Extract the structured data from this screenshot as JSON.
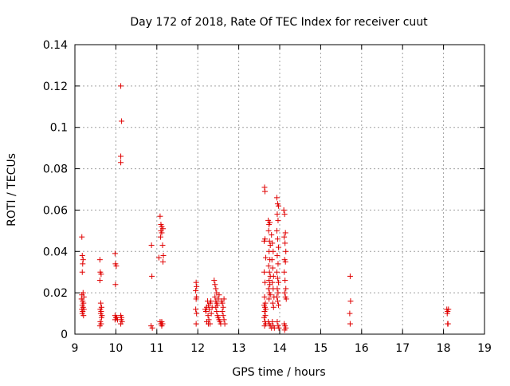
{
  "chart_data": {
    "type": "scatter",
    "title": "Day 172 of 2018, Rate Of TEC Index for receiver cuut",
    "xlabel": "GPS time / hours",
    "ylabel": "ROTI / TECUs",
    "xlim": [
      9,
      19
    ],
    "ylim": [
      0,
      0.14
    ],
    "x_ticks": [
      9,
      10,
      11,
      12,
      13,
      14,
      15,
      16,
      17,
      18,
      19
    ],
    "y_ticks": [
      0,
      0.02,
      0.04,
      0.06,
      0.08,
      0.1,
      0.12,
      0.14
    ],
    "x_tick_labels": [
      "9",
      "10",
      "11",
      "12",
      "13",
      "14",
      "15",
      "16",
      "17",
      "18",
      "19"
    ],
    "y_tick_labels": [
      "0",
      "0.02",
      "0.04",
      "0.06",
      "0.08",
      "0.1",
      "0.12",
      "0.14"
    ],
    "grid": true,
    "marker": "+",
    "marker_color": "#e00000",
    "series": [
      {
        "name": "ROTI",
        "points": [
          [
            9.17,
            0.047
          ],
          [
            9.18,
            0.038
          ],
          [
            9.2,
            0.036
          ],
          [
            9.19,
            0.034
          ],
          [
            9.18,
            0.03
          ],
          [
            9.2,
            0.02
          ],
          [
            9.17,
            0.019
          ],
          [
            9.22,
            0.018
          ],
          [
            9.16,
            0.017
          ],
          [
            9.19,
            0.016
          ],
          [
            9.21,
            0.015
          ],
          [
            9.18,
            0.014
          ],
          [
            9.2,
            0.013
          ],
          [
            9.17,
            0.012
          ],
          [
            9.22,
            0.012
          ],
          [
            9.19,
            0.011
          ],
          [
            9.18,
            0.01
          ],
          [
            9.21,
            0.009
          ],
          [
            9.61,
            0.036
          ],
          [
            9.62,
            0.03
          ],
          [
            9.64,
            0.029
          ],
          [
            9.61,
            0.026
          ],
          [
            9.63,
            0.015
          ],
          [
            9.65,
            0.013
          ],
          [
            9.62,
            0.012
          ],
          [
            9.64,
            0.011
          ],
          [
            9.63,
            0.01
          ],
          [
            9.66,
            0.009
          ],
          [
            9.65,
            0.008
          ],
          [
            9.62,
            0.006
          ],
          [
            9.61,
            0.004
          ],
          [
            9.64,
            0.005
          ],
          [
            9.98,
            0.039
          ],
          [
            9.99,
            0.034
          ],
          [
            10.01,
            0.033
          ],
          [
            9.99,
            0.024
          ],
          [
            9.98,
            0.009
          ],
          [
            10.0,
            0.008
          ],
          [
            10.02,
            0.008
          ],
          [
            10.04,
            0.007
          ],
          [
            9.98,
            0.007
          ],
          [
            10.12,
            0.12
          ],
          [
            10.14,
            0.103
          ],
          [
            10.12,
            0.086
          ],
          [
            10.12,
            0.083
          ],
          [
            10.12,
            0.009
          ],
          [
            10.14,
            0.008
          ],
          [
            10.13,
            0.007
          ],
          [
            10.15,
            0.006
          ],
          [
            10.12,
            0.005
          ],
          [
            10.87,
            0.043
          ],
          [
            10.88,
            0.028
          ],
          [
            10.86,
            0.004
          ],
          [
            10.89,
            0.003
          ],
          [
            11.08,
            0.057
          ],
          [
            11.1,
            0.053
          ],
          [
            11.12,
            0.052
          ],
          [
            11.15,
            0.051
          ],
          [
            11.1,
            0.05
          ],
          [
            11.12,
            0.049
          ],
          [
            11.09,
            0.047
          ],
          [
            11.14,
            0.043
          ],
          [
            11.16,
            0.038
          ],
          [
            11.05,
            0.037
          ],
          [
            11.15,
            0.035
          ],
          [
            11.08,
            0.006
          ],
          [
            11.12,
            0.006
          ],
          [
            11.1,
            0.005
          ],
          [
            11.14,
            0.005
          ],
          [
            11.12,
            0.004
          ],
          [
            11.96,
            0.025
          ],
          [
            11.97,
            0.023
          ],
          [
            11.95,
            0.021
          ],
          [
            11.97,
            0.018
          ],
          [
            11.96,
            0.017
          ],
          [
            11.95,
            0.012
          ],
          [
            11.97,
            0.01
          ],
          [
            11.96,
            0.005
          ],
          [
            12.18,
            0.012
          ],
          [
            12.2,
            0.011
          ],
          [
            12.22,
            0.013
          ],
          [
            12.24,
            0.016
          ],
          [
            12.26,
            0.014
          ],
          [
            12.28,
            0.012
          ],
          [
            12.3,
            0.015
          ],
          [
            12.32,
            0.016
          ],
          [
            12.25,
            0.009
          ],
          [
            12.27,
            0.007
          ],
          [
            12.22,
            0.006
          ],
          [
            12.3,
            0.005
          ],
          [
            12.26,
            0.005
          ],
          [
            12.33,
            0.01
          ],
          [
            12.35,
            0.013
          ],
          [
            12.4,
            0.026
          ],
          [
            12.42,
            0.024
          ],
          [
            12.44,
            0.022
          ],
          [
            12.46,
            0.02
          ],
          [
            12.42,
            0.018
          ],
          [
            12.44,
            0.016
          ],
          [
            12.46,
            0.015
          ],
          [
            12.48,
            0.014
          ],
          [
            12.5,
            0.017
          ],
          [
            12.52,
            0.019
          ],
          [
            12.44,
            0.013
          ],
          [
            12.46,
            0.011
          ],
          [
            12.48,
            0.009
          ],
          [
            12.5,
            0.008
          ],
          [
            12.52,
            0.007
          ],
          [
            12.54,
            0.006
          ],
          [
            12.56,
            0.005
          ],
          [
            12.58,
            0.016
          ],
          [
            12.6,
            0.015
          ],
          [
            12.62,
            0.013
          ],
          [
            12.64,
            0.017
          ],
          [
            12.6,
            0.011
          ],
          [
            12.62,
            0.009
          ],
          [
            12.64,
            0.007
          ],
          [
            12.66,
            0.005
          ],
          [
            13.63,
            0.071
          ],
          [
            13.64,
            0.069
          ],
          [
            13.62,
            0.045
          ],
          [
            13.64,
            0.046
          ],
          [
            13.66,
            0.037
          ],
          [
            13.62,
            0.03
          ],
          [
            13.64,
            0.025
          ],
          [
            13.63,
            0.018
          ],
          [
            13.65,
            0.015
          ],
          [
            13.62,
            0.014
          ],
          [
            13.64,
            0.013
          ],
          [
            13.66,
            0.012
          ],
          [
            13.63,
            0.011
          ],
          [
            13.65,
            0.009
          ],
          [
            13.62,
            0.008
          ],
          [
            13.64,
            0.006
          ],
          [
            13.66,
            0.005
          ],
          [
            13.63,
            0.004
          ],
          [
            13.72,
            0.055
          ],
          [
            13.74,
            0.053
          ],
          [
            13.76,
            0.054
          ],
          [
            13.73,
            0.05
          ],
          [
            13.75,
            0.045
          ],
          [
            13.77,
            0.043
          ],
          [
            13.74,
            0.04
          ],
          [
            13.76,
            0.036
          ],
          [
            13.73,
            0.033
          ],
          [
            13.75,
            0.03
          ],
          [
            13.77,
            0.028
          ],
          [
            13.74,
            0.026
          ],
          [
            13.76,
            0.024
          ],
          [
            13.73,
            0.022
          ],
          [
            13.75,
            0.02
          ],
          [
            13.77,
            0.019
          ],
          [
            13.74,
            0.017
          ],
          [
            13.72,
            0.006
          ],
          [
            13.75,
            0.005
          ],
          [
            13.77,
            0.004
          ],
          [
            13.8,
            0.003
          ],
          [
            13.8,
            0.048
          ],
          [
            13.82,
            0.044
          ],
          [
            13.84,
            0.04
          ],
          [
            13.81,
            0.036
          ],
          [
            13.83,
            0.032
          ],
          [
            13.85,
            0.028
          ],
          [
            13.82,
            0.025
          ],
          [
            13.84,
            0.022
          ],
          [
            13.86,
            0.018
          ],
          [
            13.83,
            0.015
          ],
          [
            13.85,
            0.013
          ],
          [
            13.82,
            0.006
          ],
          [
            13.84,
            0.004
          ],
          [
            13.87,
            0.003
          ],
          [
            13.93,
            0.066
          ],
          [
            13.95,
            0.063
          ],
          [
            13.97,
            0.062
          ],
          [
            13.94,
            0.058
          ],
          [
            13.96,
            0.055
          ],
          [
            13.93,
            0.05
          ],
          [
            13.95,
            0.046
          ],
          [
            13.97,
            0.042
          ],
          [
            13.94,
            0.038
          ],
          [
            13.96,
            0.034
          ],
          [
            13.93,
            0.03
          ],
          [
            13.95,
            0.027
          ],
          [
            13.97,
            0.025
          ],
          [
            13.94,
            0.022
          ],
          [
            13.96,
            0.02
          ],
          [
            13.93,
            0.018
          ],
          [
            13.95,
            0.016
          ],
          [
            13.97,
            0.014
          ],
          [
            13.94,
            0.006
          ],
          [
            13.96,
            0.004
          ],
          [
            13.98,
            0.003
          ],
          [
            14.1,
            0.06
          ],
          [
            14.12,
            0.058
          ],
          [
            14.14,
            0.049
          ],
          [
            14.11,
            0.047
          ],
          [
            14.13,
            0.044
          ],
          [
            14.15,
            0.04
          ],
          [
            14.12,
            0.036
          ],
          [
            14.14,
            0.035
          ],
          [
            14.11,
            0.03
          ],
          [
            14.13,
            0.026
          ],
          [
            14.15,
            0.022
          ],
          [
            14.12,
            0.02
          ],
          [
            14.14,
            0.018
          ],
          [
            14.16,
            0.017
          ],
          [
            14.11,
            0.005
          ],
          [
            14.13,
            0.004
          ],
          [
            14.15,
            0.003
          ],
          [
            14.12,
            0.002
          ],
          [
            15.72,
            0.028
          ],
          [
            15.73,
            0.016
          ],
          [
            15.71,
            0.01
          ],
          [
            15.72,
            0.005
          ],
          [
            18.08,
            0.012
          ],
          [
            18.1,
            0.011
          ],
          [
            18.12,
            0.012
          ],
          [
            18.09,
            0.01
          ],
          [
            18.11,
            0.005
          ],
          [
            18.1,
            0.005
          ]
        ]
      }
    ]
  }
}
